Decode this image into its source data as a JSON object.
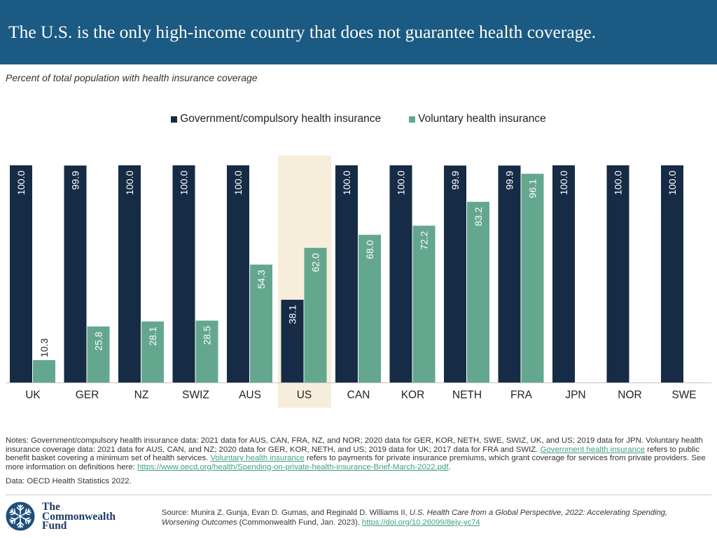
{
  "colors": {
    "header_background": "#1b5a82",
    "highlight": "#f7eddb",
    "link": "#3f9e86",
    "logo": "#1d4e7c",
    "logo_text": "#1e3a63"
  },
  "chart_data": {
    "type": "bar",
    "title": "The U.S. is the only high-income country that does not guarantee health coverage.",
    "subtitle": "Percent of total population with health insurance coverage",
    "categories": [
      "UK",
      "GER",
      "NZ",
      "SWIZ",
      "AUS",
      "US",
      "CAN",
      "KOR",
      "NETH",
      "FRA",
      "JPN",
      "NOR",
      "SWE"
    ],
    "series": [
      {
        "name": "Government/compulsory health insurance",
        "color": "#162b45",
        "values": [
          100.0,
          99.9,
          100.0,
          100.0,
          100.0,
          38.1,
          100.0,
          100.0,
          99.9,
          99.9,
          100.0,
          100.0,
          100.0
        ]
      },
      {
        "name": "Voluntary health insurance",
        "color": "#64a78f",
        "values": [
          10.3,
          25.8,
          28.1,
          28.5,
          54.3,
          62.0,
          68.0,
          72.2,
          83.2,
          96.1,
          null,
          null,
          null
        ]
      }
    ],
    "highlight_category": "US",
    "xlabel": "",
    "ylabel": "",
    "ylim": [
      0,
      100
    ],
    "grid": false,
    "legend": "top-center",
    "value_decimals": 1
  },
  "notes": {
    "text_1": "Notes: Government/compulsory health insurance data: 2021 data for AUS, CAN, FRA, NZ, and NOR; 2020 data for GER, KOR, NETH, SWE, SWIZ, UK, and US; 2019 data for JPN. Voluntary health insurance coverage data: 2021 data for AUS, CAN, and NZ; 2020 data for GER, KOR, NETH, and US; 2019 data for UK; 2017 data for FRA and SWIZ. ",
    "link_1": "Government health insurance",
    "text_2": " refers to public benefit basket covering a minimum set of health services. ",
    "link_2": "Voluntary health insurance",
    "text_3": " refers to payments for private insurance premiums, which grant coverage for services from private providers. See more information on definitions here: ",
    "link_3": "https://www.oecd.org/health/Spending-on-private-health-insurance-Brief-March-2022.pdf",
    "text_4": "."
  },
  "data_source": "Data: OECD Health Statistics 2022.",
  "footer": {
    "logo": {
      "icon": "snowflake-icon",
      "line_1": "The",
      "line_2": "Commonwealth",
      "line_3": "Fund"
    },
    "source": {
      "text_1": "Source: Munira Z. Gunja, Evan D. Gumas, and Reginald D. Williams II, ",
      "title_italic": "U.S. Health Care from a Global Perspective, 2022: Accelerating Spending, Worsening Outcomes",
      "text_2": " (Commonwealth Fund, Jan. 2023). ",
      "link": "https://doi.org/10.26099/8ejy-yc74"
    }
  }
}
